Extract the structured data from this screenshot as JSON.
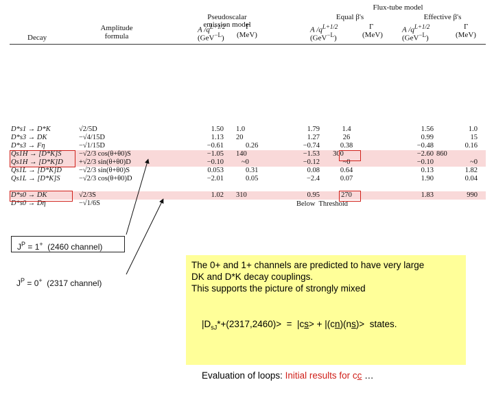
{
  "header": {
    "flux_tube_model": "Flux-tube model",
    "pseudoscalar_line1": "Pseudoscalar",
    "pseudoscalar_line2": "emission model",
    "equal_betas": "Equal β's",
    "effective_betas": "Effective β's",
    "decay": "Decay",
    "amplitude_line1": "Amplitude",
    "amplitude_line2": "formula",
    "a_over_q": "A /q",
    "a_over_q_exp": "L+1/2",
    "gev_unit": "(GeV",
    "gev_exp": "−L",
    "gamma": "Γ",
    "mev_unit": "(MeV)"
  },
  "rows": [
    {
      "decay": "D*s1 → D*K",
      "amp": "√2/5D",
      "ps_a": "1.50",
      "ps_g": "1.0",
      "eq_a": "1.79",
      "eq_g": "1.4",
      "ef_a": "1.56",
      "ef_g": "1.0"
    },
    {
      "decay": "D*s3 → DK",
      "amp": "−√4/15D",
      "ps_a": "1.13",
      "ps_g": "20",
      "eq_a": "1.27",
      "eq_g": "26",
      "ef_a": "0.99",
      "ef_g": "15"
    },
    {
      "decay": "D*s3 → Fη",
      "amp": "−√1/15D",
      "ps_a": "−0.61",
      "ps_g": "0.26",
      "eq_a": "−0.74",
      "eq_g": "0.38",
      "ef_a": "−0.48",
      "ef_g": "0.16"
    },
    {
      "decay": "Qs1H → [D*K]S",
      "amp": "−√2/3 cos(θ+θ0)S",
      "ps_a": "−1.05",
      "ps_g": "140",
      "eq_a": "−1.53",
      "eq_g": "300",
      "ef_a": "−2.60",
      "ef_g": "860"
    },
    {
      "decay": "Qs1H → [D*K]D",
      "amp": "+√2/3 sin(θ+θ0)D",
      "ps_a": "−0.10",
      "ps_g": "~0",
      "eq_a": "−0.12",
      "eq_g": "~0",
      "ef_a": "−0.10",
      "ef_g": "~0"
    },
    {
      "decay": "Qs1L → [D*K]D",
      "amp": "−√2/3 sin(θ+θ0)S",
      "ps_a": "0.053",
      "ps_g": "0.31",
      "eq_a": "0.08",
      "eq_g": "0.64",
      "ef_a": "0.13",
      "ef_g": "1.82"
    },
    {
      "decay": "Qs1L → [D*K]S",
      "amp": "−√2/3 cos(θ+θ0)D",
      "ps_a": "−2.01",
      "ps_g": "0.05",
      "eq_a": "−2.4",
      "eq_g": "0.07",
      "ef_a": "1.90",
      "ef_g": "0.04"
    },
    {
      "decay": "D*s0 → DK",
      "amp": "√2/3S",
      "ps_a": "1.02",
      "ps_g": "310",
      "eq_a": "0.95",
      "eq_g": "270",
      "ef_a": "1.83",
      "ef_g": "990"
    },
    {
      "decay": "D*s0 → Dη",
      "amp": "−√1/6S",
      "ps_a": "",
      "ps_g": "",
      "eq_a": "",
      "eq_g": "",
      "ef_a": "",
      "ef_g": ""
    }
  ],
  "below_threshold": "Below  Threshold",
  "labels": {
    "jp_1_prefix": "J",
    "jp_1_sup": "P",
    "jp_1_rest": " = 1",
    "jp_1_plus": "+",
    "jp_1_channel": "  (2460 channel)",
    "jp_0_prefix": "J",
    "jp_0_sup": "P",
    "jp_0_rest": " = 0",
    "jp_0_plus": "+",
    "jp_0_channel": "  (2317 channel)"
  },
  "notes": {
    "line1": "The 0+ and 1+ channels are predicted to have very large",
    "line2": "DK and D*K decay couplings.",
    "line3": "This supports the picture of strongly mixed",
    "state_prefix": "|D",
    "state_sub": "sJ",
    "state_rest": "*+(2317,2460)>  =  |c",
    "state_s": "s",
    "state_mid": "> + |(c",
    "state_n1": "n",
    "state_mid2": ")(n",
    "state_s2": "s",
    "state_end": ")>  states.",
    "eval_prefix": "Evaluation of loops: ",
    "eval_red": "Initial results for c",
    "eval_c": "c",
    "eval_end": " …"
  },
  "colors": {
    "highlight_band": "#f9d9d9",
    "red_box": "#d0201a",
    "notes_bg": "#ffff99"
  }
}
